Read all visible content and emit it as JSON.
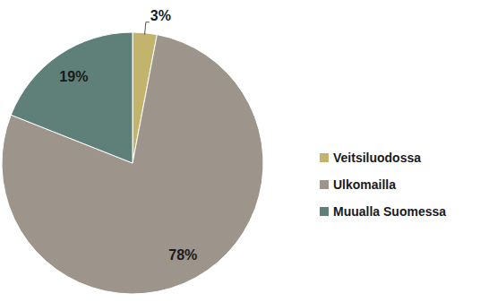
{
  "chart_data": {
    "type": "pie",
    "categories": [
      "Veitsiluodossa",
      "Ulkomailla",
      "Muualla Suomessa"
    ],
    "values": [
      3,
      78,
      19
    ],
    "value_labels": [
      "3%",
      "78%",
      "19%"
    ],
    "colors": [
      "#c2b46c",
      "#9d958b",
      "#5f8078"
    ],
    "data_labels": true,
    "legend": "right"
  }
}
